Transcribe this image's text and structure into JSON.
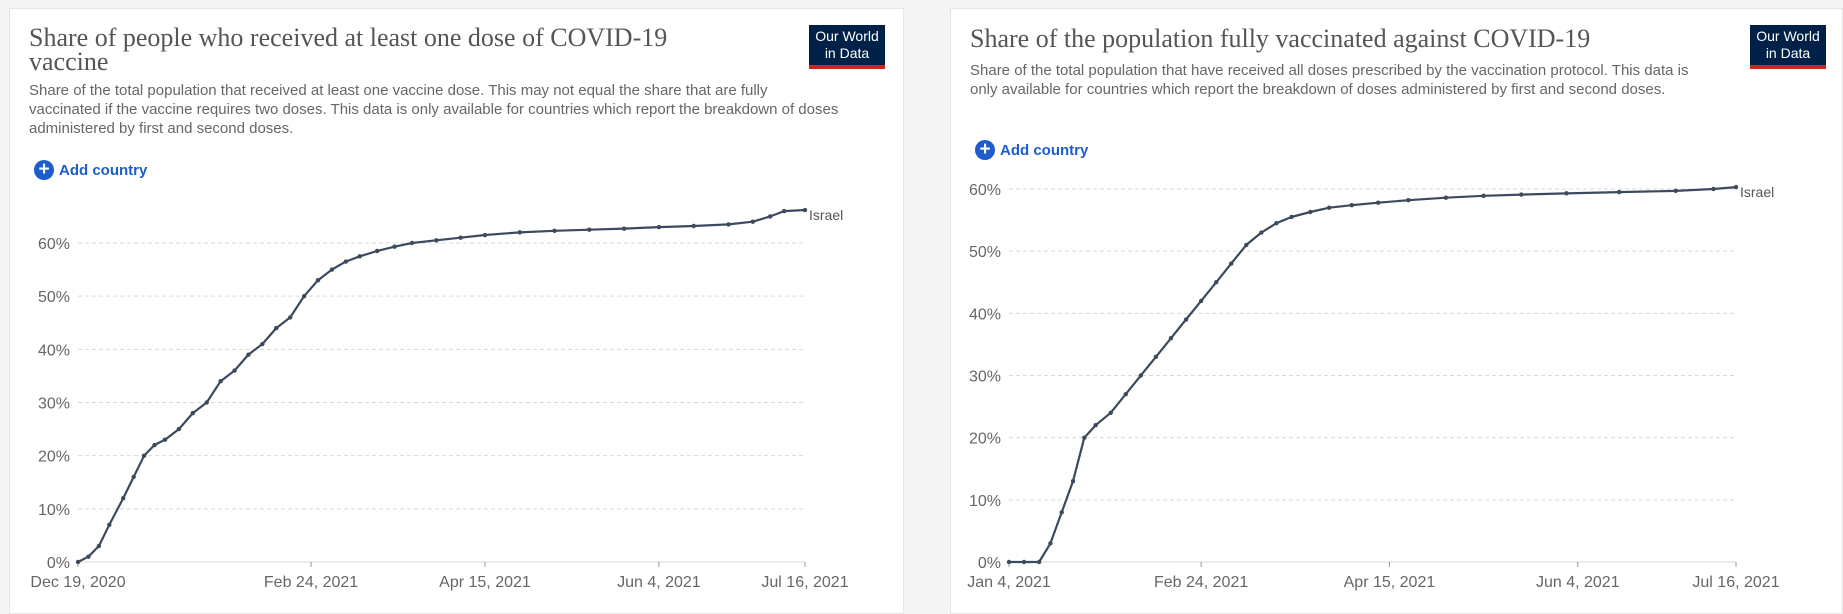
{
  "logo": {
    "line1": "Our World",
    "line2": "in Data"
  },
  "colors": {
    "series": "#3b4a5c",
    "grid": "#d9d9d9",
    "logo_bg": "#002147",
    "logo_stripe": "#ce261e",
    "link": "#1d5ccf"
  },
  "icons": {
    "add": "plus-circle-icon"
  },
  "panels": [
    {
      "title": "Share of people who received at least one dose of COVID-19 vaccine",
      "subtitle": "Share of the total population that received at least one vaccine dose. This may not equal the share that are fully vaccinated if the vaccine requires two doses. This data is only available for countries which report the breakdown of doses administered by first and second doses.",
      "add_country": "Add country"
    },
    {
      "title": "Share of the population fully vaccinated against COVID-19",
      "subtitle": "Share of the total population that have received all doses prescribed by the vaccination protocol. This data is only available for countries which report the breakdown of doses administered by first and second doses.",
      "add_country": "Add country"
    }
  ],
  "chart_data": [
    {
      "type": "line",
      "title": "Share of people who received at least one dose of COVID-19 vaccine",
      "xlim": [
        "2020-12-19",
        "2021-07-16"
      ],
      "ylim": [
        0,
        66
      ],
      "y_ticks": [
        "0%",
        "10%",
        "20%",
        "30%",
        "40%",
        "50%",
        "60%"
      ],
      "x_ticks": [
        "Dec 19, 2020",
        "Feb 24, 2021",
        "Apr 15, 2021",
        "Jun 4, 2021",
        "Jul 16, 2021"
      ],
      "grid": true,
      "series": [
        {
          "name": "Israel",
          "x": [
            "2020-12-19",
            "2020-12-22",
            "2020-12-25",
            "2020-12-28",
            "2021-01-01",
            "2021-01-04",
            "2021-01-07",
            "2021-01-10",
            "2021-01-13",
            "2021-01-17",
            "2021-01-21",
            "2021-01-25",
            "2021-01-29",
            "2021-02-02",
            "2021-02-06",
            "2021-02-10",
            "2021-02-14",
            "2021-02-18",
            "2021-02-22",
            "2021-02-26",
            "2021-03-02",
            "2021-03-06",
            "2021-03-10",
            "2021-03-15",
            "2021-03-20",
            "2021-03-25",
            "2021-04-01",
            "2021-04-08",
            "2021-04-15",
            "2021-04-25",
            "2021-05-05",
            "2021-05-15",
            "2021-05-25",
            "2021-06-04",
            "2021-06-14",
            "2021-06-24",
            "2021-07-01",
            "2021-07-06",
            "2021-07-10",
            "2021-07-16"
          ],
          "y": [
            0,
            1,
            3,
            7,
            12,
            16,
            20,
            22,
            23,
            25,
            28,
            30,
            34,
            36,
            39,
            41,
            44,
            46,
            50,
            53,
            55,
            56.5,
            57.5,
            58.5,
            59.3,
            60,
            60.5,
            61,
            61.5,
            62,
            62.3,
            62.5,
            62.7,
            63,
            63.2,
            63.5,
            64,
            65,
            66,
            66.2
          ]
        }
      ]
    },
    {
      "type": "line",
      "title": "Share of the population fully vaccinated against COVID-19",
      "xlim": [
        "2021-01-04",
        "2021-07-16"
      ],
      "ylim": [
        0,
        60
      ],
      "y_ticks": [
        "0%",
        "10%",
        "20%",
        "30%",
        "40%",
        "50%",
        "60%"
      ],
      "x_ticks": [
        "Jan 4, 2021",
        "Feb 24, 2021",
        "Apr 15, 2021",
        "Jun 4, 2021",
        "Jul 16, 2021"
      ],
      "grid": true,
      "series": [
        {
          "name": "Israel",
          "x": [
            "2021-01-04",
            "2021-01-08",
            "2021-01-12",
            "2021-01-15",
            "2021-01-18",
            "2021-01-21",
            "2021-01-24",
            "2021-01-27",
            "2021-01-31",
            "2021-02-04",
            "2021-02-08",
            "2021-02-12",
            "2021-02-16",
            "2021-02-20",
            "2021-02-24",
            "2021-02-28",
            "2021-03-04",
            "2021-03-08",
            "2021-03-12",
            "2021-03-16",
            "2021-03-20",
            "2021-03-25",
            "2021-03-30",
            "2021-04-05",
            "2021-04-12",
            "2021-04-20",
            "2021-04-30",
            "2021-05-10",
            "2021-05-20",
            "2021-06-01",
            "2021-06-15",
            "2021-06-30",
            "2021-07-10",
            "2021-07-16"
          ],
          "y": [
            0,
            0,
            0,
            3,
            8,
            13,
            20,
            22,
            24,
            27,
            30,
            33,
            36,
            39,
            42,
            45,
            48,
            51,
            53,
            54.5,
            55.5,
            56.3,
            57,
            57.4,
            57.8,
            58.2,
            58.6,
            58.9,
            59.1,
            59.3,
            59.5,
            59.7,
            60,
            60.3
          ]
        }
      ]
    }
  ]
}
